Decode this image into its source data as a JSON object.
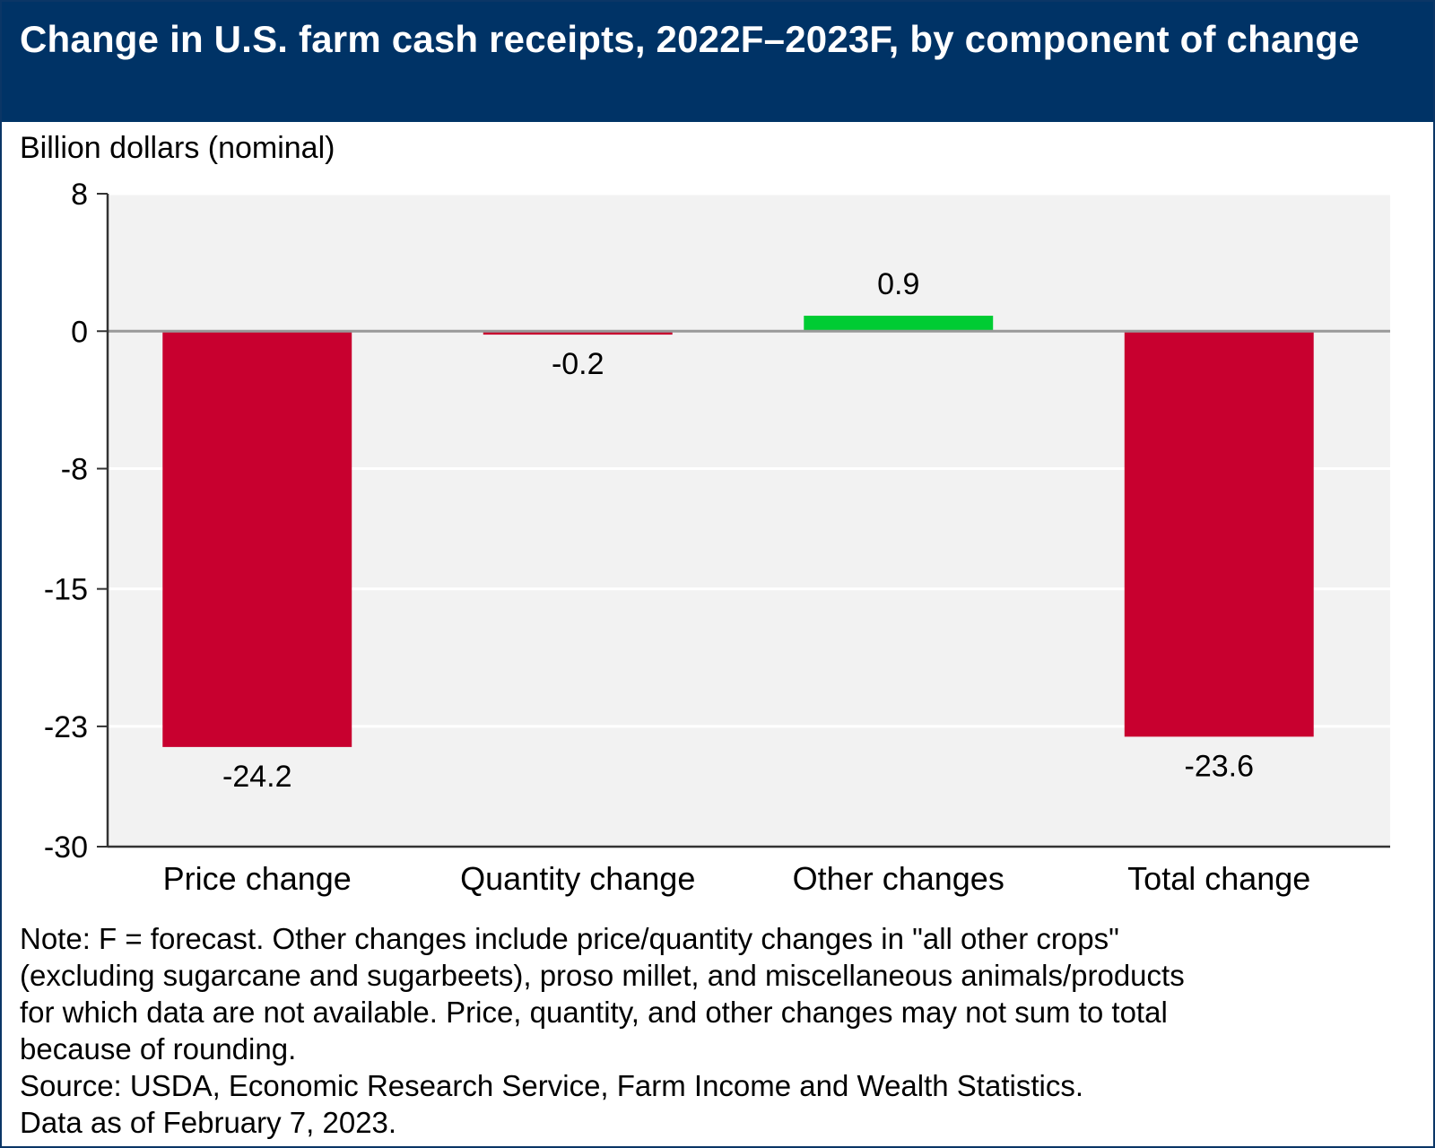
{
  "header": {
    "title": "Change in U.S. farm cash receipts, 2022F–2023F, by component of change"
  },
  "chart_data": {
    "type": "bar",
    "ylabel": "Billion dollars (nominal)",
    "categories": [
      "Price change",
      "Quantity change",
      "Other changes",
      "Total change"
    ],
    "values": [
      -24.2,
      -0.2,
      0.9,
      -23.6
    ],
    "data_labels": [
      "-24.2",
      "-0.2",
      "0.9",
      "-23.6"
    ],
    "ylim": [
      -30,
      8
    ],
    "yticks": [
      8,
      0,
      -8,
      -15,
      -23,
      -30
    ],
    "grid": true,
    "colors": {
      "negative": "#c8002f",
      "positive": "#00cc33",
      "plot_background": "#f2f2f2",
      "zero_line": "#999999"
    }
  },
  "notes": {
    "note_lines": [
      "Note: F = forecast. Other changes include price/quantity changes in \"all other crops\"",
      "(excluding sugarcane and sugarbeets), proso millet, and miscellaneous animals/products",
      "for which data are not available. Price, quantity, and other changes may not sum to total",
      "because of rounding."
    ],
    "source": "Source: USDA, Economic Research Service, Farm Income and Wealth Statistics.",
    "data_as_of": "Data as of February 7, 2023."
  }
}
